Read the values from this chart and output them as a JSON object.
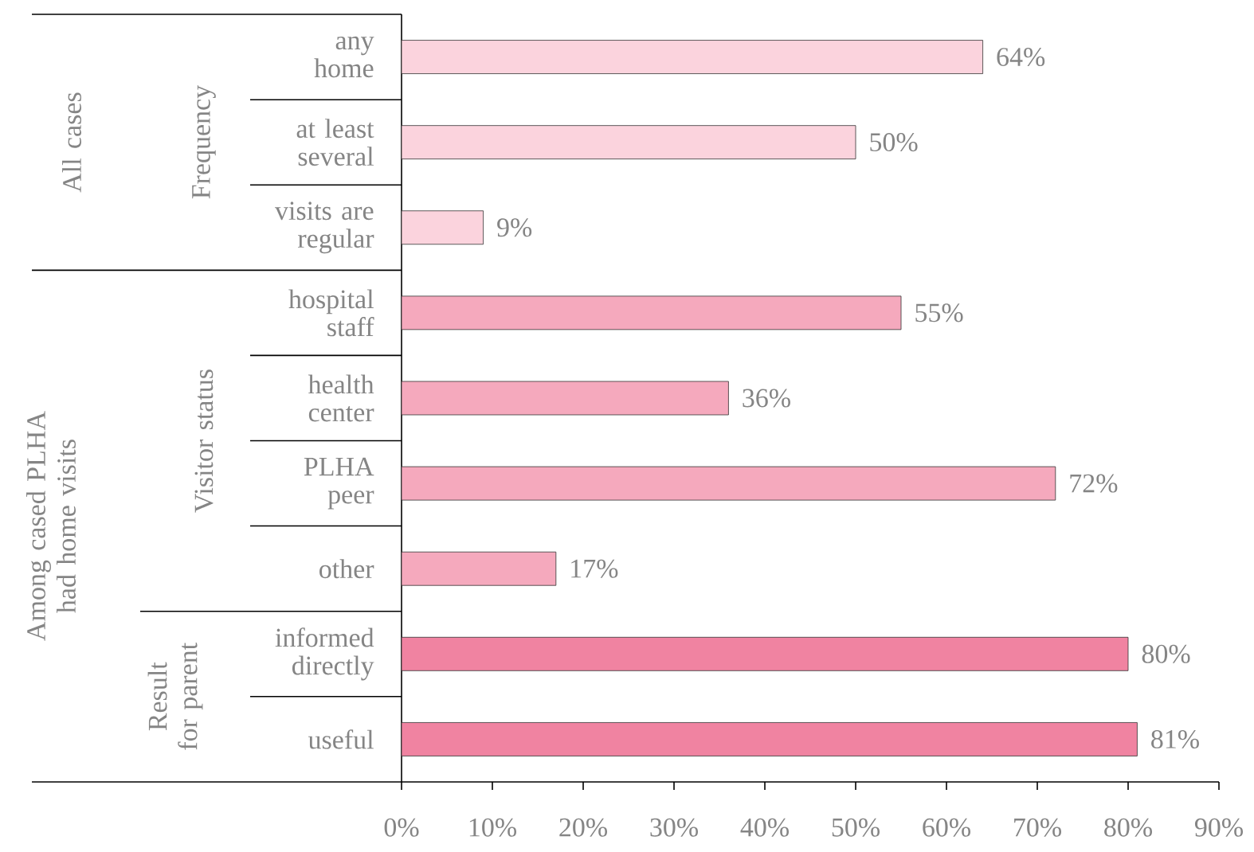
{
  "chart_data": {
    "type": "bar",
    "orientation": "horizontal",
    "categories": [
      "any home",
      "at least several",
      "visits are regular",
      "hospital staff",
      "health center",
      "PLHA peer",
      "other",
      "informed directly",
      "useful"
    ],
    "values": [
      64,
      50,
      9,
      55,
      36,
      72,
      17,
      80,
      81
    ],
    "colors": [
      "#fbd3dd",
      "#fbd3dd",
      "#fbd3dd",
      "#f5a9bd",
      "#f5a9bd",
      "#f5a9bd",
      "#f5a9bd",
      "#f083a1",
      "#f083a1"
    ],
    "value_labels": [
      "64%",
      "50%",
      "9%",
      "55%",
      "36%",
      "72%",
      "17%",
      "80%",
      "81%"
    ],
    "xlim": [
      0,
      90
    ],
    "xticks": [
      {
        "value": 0,
        "label": "0%"
      },
      {
        "value": 10,
        "label": "10%"
      },
      {
        "value": 20,
        "label": "20%"
      },
      {
        "value": 30,
        "label": "30%"
      },
      {
        "value": 40,
        "label": "40%"
      },
      {
        "value": 50,
        "label": "50%"
      },
      {
        "value": 60,
        "label": "60%"
      },
      {
        "value": 70,
        "label": "70%"
      },
      {
        "value": 80,
        "label": "80%"
      },
      {
        "value": 90,
        "label": "90%"
      }
    ],
    "annotations": [
      "All cases",
      "Frequency",
      "Among cased PLHA had home visits",
      "Visitor status",
      "Result for parent"
    ],
    "grid": false
  }
}
